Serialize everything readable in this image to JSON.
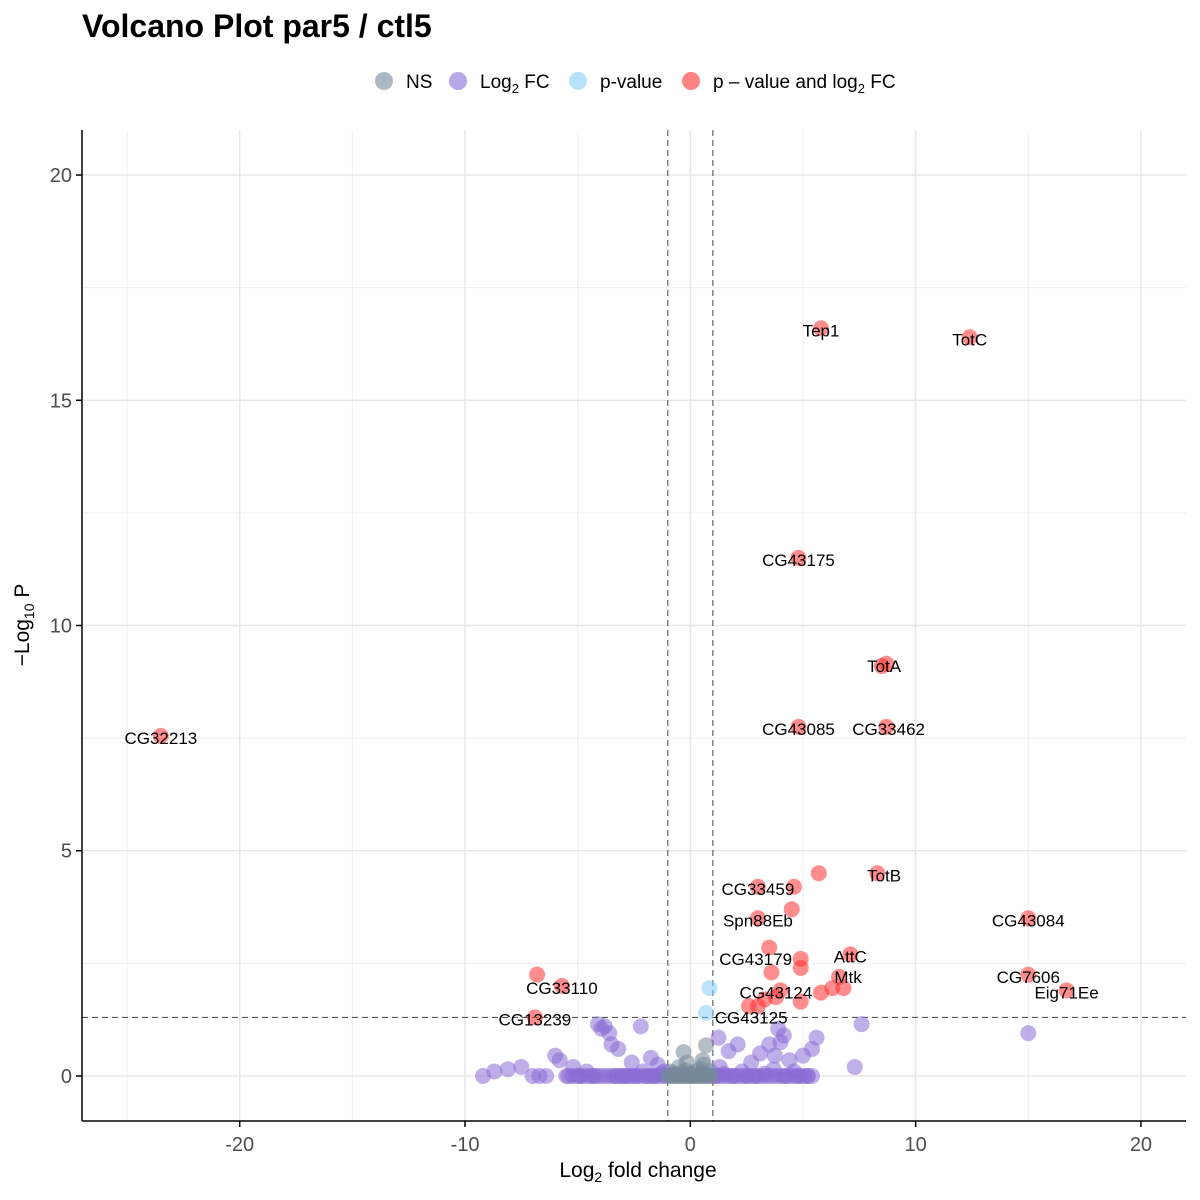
{
  "chart_data": {
    "type": "scatter",
    "title": "Volcano Plot par5 / ctl5",
    "xlabel": "Log2 fold change",
    "xlabel_parts": {
      "prefix": "Log",
      "sub": "2",
      "suffix": " fold change"
    },
    "ylabel_parts": {
      "prefix": "−Log",
      "sub": "10",
      "suffix": " P"
    },
    "xlim": [
      -27,
      22
    ],
    "ylim": [
      -1,
      21
    ],
    "x_ticks": [
      -20,
      -10,
      0,
      10,
      20
    ],
    "x_tick_labels": [
      "-20",
      "-10",
      "0",
      "10",
      "20"
    ],
    "y_ticks": [
      0,
      5,
      10,
      15,
      20
    ],
    "y_tick_labels": [
      "0",
      "5",
      "10",
      "15",
      "20"
    ],
    "cutoffs": {
      "log2fc": [
        -1,
        1
      ],
      "neg_log10_p": 1.3
    },
    "legend_position": "top",
    "legend": [
      {
        "key": "ns",
        "color": "#778899",
        "text_parts": {
          "prefix": "NS",
          "sub": "",
          "suffix": ""
        }
      },
      {
        "key": "fc",
        "color": "#8a6bd6",
        "text_parts": {
          "prefix": "Log",
          "sub": "2",
          "suffix": " FC"
        }
      },
      {
        "key": "p",
        "color": "#87cefa",
        "text_parts": {
          "prefix": "p-value",
          "sub": "",
          "suffix": ""
        }
      },
      {
        "key": "both",
        "color": "#ff3030",
        "text_parts": {
          "prefix": "p – value and log",
          "sub": "2",
          "suffix": " FC"
        }
      }
    ],
    "series": [
      {
        "name": "NS",
        "key": "ns",
        "color": "#778899",
        "points": [
          [
            -0.9,
            0.1
          ],
          [
            -0.8,
            0.03
          ],
          [
            -0.7,
            0.05
          ],
          [
            -0.6,
            0.02
          ],
          [
            -0.5,
            0.2
          ],
          [
            -0.4,
            0.08
          ],
          [
            -0.3,
            0.04
          ],
          [
            -0.2,
            0.12
          ],
          [
            -0.1,
            0.02
          ],
          [
            0,
            0.05
          ],
          [
            0.1,
            0.02
          ],
          [
            0.2,
            0.09
          ],
          [
            0.3,
            0.03
          ],
          [
            0.4,
            0.15
          ],
          [
            0.5,
            0.06
          ],
          [
            0.6,
            0.25
          ],
          [
            0.7,
            0.04
          ],
          [
            0.8,
            0.02
          ],
          [
            0.9,
            0.1
          ],
          [
            -0.15,
            0.3
          ],
          [
            0.55,
            0.35
          ],
          [
            -0.3,
            0.53
          ],
          [
            0.7,
            0.68
          ]
        ]
      },
      {
        "name": "Log2 FC",
        "key": "fc",
        "color": "#8a6bd6",
        "points": [
          [
            -9.2,
            0.0
          ],
          [
            -8.7,
            0.1
          ],
          [
            -8.1,
            0.15
          ],
          [
            -7.5,
            0.2
          ],
          [
            -7.0,
            0.0
          ],
          [
            -6.7,
            0.0
          ],
          [
            -6.4,
            0.0
          ],
          [
            -6.0,
            0.45
          ],
          [
            -5.8,
            0.35
          ],
          [
            -5.5,
            0.0
          ],
          [
            -5.2,
            0.2
          ],
          [
            -4.9,
            0.0
          ],
          [
            -4.6,
            0.1
          ],
          [
            -4.3,
            0.0
          ],
          [
            -4.1,
            1.15
          ],
          [
            -3.95,
            1.05
          ],
          [
            -3.8,
            1.1
          ],
          [
            -3.6,
            0.95
          ],
          [
            -3.5,
            0.7
          ],
          [
            -3.3,
            0.0
          ],
          [
            -3.2,
            0.6
          ],
          [
            -3.0,
            0.0
          ],
          [
            -2.8,
            0.0
          ],
          [
            -2.6,
            0.3
          ],
          [
            -2.4,
            0.0
          ],
          [
            -2.2,
            1.1
          ],
          [
            -2.1,
            0.1
          ],
          [
            -1.9,
            0.0
          ],
          [
            -1.75,
            0.4
          ],
          [
            -1.6,
            0.0
          ],
          [
            -1.45,
            0.25
          ],
          [
            -1.3,
            0.05
          ],
          [
            -1.15,
            0.1
          ],
          [
            1.15,
            0.0
          ],
          [
            1.3,
            0.2
          ],
          [
            1.5,
            0.05
          ],
          [
            1.7,
            0.55
          ],
          [
            1.9,
            0.0
          ],
          [
            2.1,
            0.7
          ],
          [
            2.3,
            0.1
          ],
          [
            2.5,
            0.0
          ],
          [
            2.7,
            0.3
          ],
          [
            2.9,
            0.0
          ],
          [
            3.1,
            0.5
          ],
          [
            3.3,
            0.05
          ],
          [
            3.5,
            0.7
          ],
          [
            3.7,
            0.15
          ],
          [
            3.9,
            1.05
          ],
          [
            4.0,
            0.75
          ],
          [
            4.2,
            0.0
          ],
          [
            4.4,
            0.35
          ],
          [
            4.6,
            0.1
          ],
          [
            4.8,
            0.0
          ],
          [
            5.0,
            0.45
          ],
          [
            5.2,
            0.0
          ],
          [
            5.4,
            0.6
          ],
          [
            5.6,
            0.85
          ],
          [
            7.3,
            0.2
          ],
          [
            7.6,
            1.15
          ],
          [
            15.0,
            0.95
          ],
          [
            3.75,
            0.45
          ],
          [
            4.15,
            0.9
          ],
          [
            1.25,
            0.85
          ]
        ]
      },
      {
        "name": "p-value",
        "key": "p",
        "color": "#87cefa",
        "points": [
          [
            0.85,
            1.95
          ],
          [
            0.7,
            1.4
          ]
        ]
      },
      {
        "name": "p - value and log2 FC",
        "key": "both",
        "color": "#ff3030",
        "points": [
          [
            5.8,
            16.6
          ],
          [
            12.4,
            16.4
          ],
          [
            4.8,
            11.5
          ],
          [
            8.7,
            9.15
          ],
          [
            8.5,
            9.1
          ],
          [
            4.8,
            7.75
          ],
          [
            8.7,
            7.75
          ],
          [
            -23.5,
            7.55
          ],
          [
            5.7,
            4.5
          ],
          [
            8.3,
            4.5
          ],
          [
            4.6,
            4.2
          ],
          [
            3.0,
            4.2
          ],
          [
            4.5,
            3.7
          ],
          [
            15.0,
            3.5
          ],
          [
            3.0,
            3.5
          ],
          [
            3.5,
            2.85
          ],
          [
            4.9,
            2.6
          ],
          [
            7.1,
            2.7
          ],
          [
            4.9,
            2.4
          ],
          [
            3.6,
            2.3
          ],
          [
            6.6,
            2.2
          ],
          [
            15.0,
            2.25
          ],
          [
            16.7,
            1.9
          ],
          [
            -6.8,
            2.25
          ],
          [
            -5.7,
            2.0
          ],
          [
            6.8,
            1.95
          ],
          [
            6.3,
            1.95
          ],
          [
            5.8,
            1.85
          ],
          [
            4.0,
            1.9
          ],
          [
            3.3,
            1.7
          ],
          [
            3.0,
            1.55
          ],
          [
            2.6,
            1.55
          ],
          [
            3.8,
            1.75
          ],
          [
            4.9,
            1.65
          ],
          [
            -6.9,
            1.3
          ]
        ]
      }
    ],
    "labels": [
      {
        "text": "Tep1",
        "x": 5.8,
        "y": 16.55
      },
      {
        "text": "TotC",
        "x": 12.4,
        "y": 16.35
      },
      {
        "text": "CG43175",
        "x": 4.8,
        "y": 11.45
      },
      {
        "text": "TotA",
        "x": 8.6,
        "y": 9.1
      },
      {
        "text": "CG43085",
        "x": 4.8,
        "y": 7.7
      },
      {
        "text": "CG33462",
        "x": 8.8,
        "y": 7.7
      },
      {
        "text": "CG32213",
        "x": -23.5,
        "y": 7.5
      },
      {
        "text": "TotB",
        "x": 8.6,
        "y": 4.45
      },
      {
        "text": "CG33459",
        "x": 3.0,
        "y": 4.15
      },
      {
        "text": "CG43084",
        "x": 15.0,
        "y": 3.45
      },
      {
        "text": "Spn88Eb",
        "x": 3.0,
        "y": 3.45
      },
      {
        "text": "AttC",
        "x": 7.1,
        "y": 2.65
      },
      {
        "text": "CG43179",
        "x": 2.9,
        "y": 2.6
      },
      {
        "text": "Mtk",
        "x": 7.0,
        "y": 2.2
      },
      {
        "text": "CG7606",
        "x": 15.0,
        "y": 2.2
      },
      {
        "text": "CG33110",
        "x": -5.7,
        "y": 1.95
      },
      {
        "text": "Eig71Ee",
        "x": 16.7,
        "y": 1.85
      },
      {
        "text": "CG43124",
        "x": 3.8,
        "y": 1.85
      },
      {
        "text": "CG13239",
        "x": -6.9,
        "y": 1.25
      },
      {
        "text": "CG43125",
        "x": 2.7,
        "y": 1.3
      }
    ]
  }
}
